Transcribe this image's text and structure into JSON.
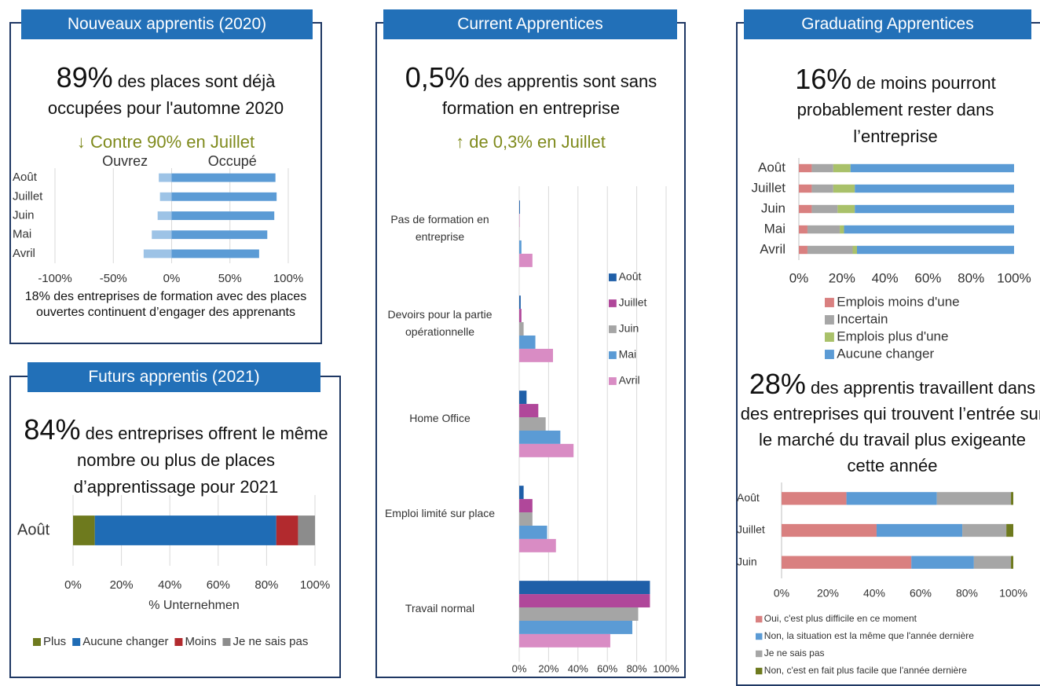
{
  "panels": [
    {
      "title": "Nouveaux apprentis (2020)",
      "highlight": "89%",
      "text": "des places sont déjà occupées pour l'automne 2020",
      "change": "↓ Contre 90% en Juillet",
      "note": "18% des entreprises de formation avec des places ouvertes continuent d’engager des apprenants"
    },
    {
      "title": "Futurs apprentis (2021)",
      "highlight": "84%",
      "text": "des entreprises offrent le même nombre ou plus de places d’apprentissage pour 2021"
    },
    {
      "title": "Current Apprentices",
      "highlight": "0,5%",
      "text": "des apprentis sont sans formation en entreprise",
      "change": "↑ de 0,3% en Juillet"
    },
    {
      "title": "Graduating Apprentices",
      "highlight": "16%",
      "text": "de moins pourront probablement rester dans l’entreprise",
      "highlight2": "28%",
      "text2": "des apprentis travaillent dans des entreprises qui trouvent l’entrée sur le marché du travail plus exigeante cette année"
    }
  ],
  "chart_data": [
    {
      "type": "bar",
      "orientation": "horizontal",
      "stacked": true,
      "grid": true,
      "legend": "top",
      "categories": [
        "Août",
        "Juillet",
        "Juin",
        "Mai",
        "Avril"
      ],
      "series": [
        {
          "name": "Ouvrez",
          "color": "#9dc3e6",
          "values": [
            -11,
            -10,
            -12,
            -17,
            -24
          ]
        },
        {
          "name": "Occupé",
          "color": "#5b9bd5",
          "values": [
            89,
            90,
            88,
            82,
            75
          ]
        }
      ],
      "xlim": [
        -100,
        100
      ],
      "xticks": [
        {
          "value": -100,
          "label": "-100%"
        },
        {
          "value": -50,
          "label": "-50%"
        },
        {
          "value": 0,
          "label": "0%"
        },
        {
          "value": 50,
          "label": "50%"
        },
        {
          "value": 100,
          "label": "100%"
        }
      ]
    },
    {
      "type": "bar",
      "orientation": "horizontal",
      "stacked": true,
      "grid": true,
      "legend": "bottom",
      "categories": [
        "Août"
      ],
      "x_label": "% Unternehmen",
      "series": [
        {
          "name": "Plus",
          "color": "#6e7a1e",
          "values": [
            9
          ]
        },
        {
          "name": "Aucune changer",
          "color": "#1f6cb5",
          "values": [
            75
          ]
        },
        {
          "name": "Moins",
          "color": "#b22a2e",
          "values": [
            9
          ]
        },
        {
          "name": "Je ne sais pas",
          "color": "#8c8c8c",
          "values": [
            7
          ]
        }
      ],
      "xlim": [
        0,
        100
      ],
      "xticks": [
        {
          "value": 0,
          "label": "0%"
        },
        {
          "value": 20,
          "label": "20%"
        },
        {
          "value": 40,
          "label": "40%"
        },
        {
          "value": 60,
          "label": "60%"
        },
        {
          "value": 80,
          "label": "80%"
        },
        {
          "value": 100,
          "label": "100%"
        }
      ]
    },
    {
      "type": "bar",
      "orientation": "horizontal",
      "stacked": false,
      "grid": true,
      "legend": "right",
      "categories": [
        "Pas de formation en entreprise",
        "Devoirs pour la partie opérationnelle",
        "Home Office",
        "Emploi limité sur place",
        "Travail normal"
      ],
      "series": [
        {
          "name": "Août",
          "color": "#1f5fa8",
          "values": [
            0.5,
            1,
            5,
            3,
            89
          ]
        },
        {
          "name": "Juillet",
          "color": "#b0479a",
          "values": [
            0.2,
            1.5,
            13,
            9,
            89
          ]
        },
        {
          "name": "Juin",
          "color": "#a5a5a5",
          "values": [
            0.2,
            3,
            18,
            9,
            81
          ]
        },
        {
          "name": "Mai",
          "color": "#5b9bd5",
          "values": [
            1.5,
            11,
            28,
            19,
            77
          ]
        },
        {
          "name": "Avril",
          "color": "#d98cc4",
          "values": [
            9,
            23,
            37,
            25,
            62
          ]
        }
      ],
      "xlim": [
        0,
        100
      ],
      "xticks": [
        {
          "value": 0,
          "label": "0%"
        },
        {
          "value": 20,
          "label": "20%"
        },
        {
          "value": 40,
          "label": "40%"
        },
        {
          "value": 60,
          "label": "60%"
        },
        {
          "value": 80,
          "label": "80%"
        },
        {
          "value": 100,
          "label": "100%"
        }
      ]
    },
    {
      "type": "bar",
      "orientation": "horizontal",
      "stacked": true,
      "grid": false,
      "legend": "bottom",
      "categories": [
        "Août",
        "Juillet",
        "Juin",
        "Mai",
        "Avril"
      ],
      "series": [
        {
          "name": "Emplois moins d'une",
          "color": "#d98080",
          "values": [
            6,
            6,
            6,
            4,
            4
          ]
        },
        {
          "name": "Incertain",
          "color": "#a6a6a6",
          "values": [
            10,
            10,
            12,
            15,
            21
          ]
        },
        {
          "name": "Emplois plus d'une",
          "color": "#a9c16a",
          "values": [
            8,
            10,
            8,
            2,
            2
          ]
        },
        {
          "name": "Aucune changer",
          "color": "#5b9bd5",
          "values": [
            76,
            74,
            74,
            79,
            73
          ]
        }
      ],
      "xlim": [
        0,
        100
      ],
      "xticks": [
        {
          "value": 0,
          "label": "0%"
        },
        {
          "value": 20,
          "label": "20%"
        },
        {
          "value": 40,
          "label": "40%"
        },
        {
          "value": 60,
          "label": "60%"
        },
        {
          "value": 80,
          "label": "80%"
        },
        {
          "value": 100,
          "label": "100%"
        }
      ]
    },
    {
      "type": "bar",
      "orientation": "horizontal",
      "stacked": true,
      "grid": false,
      "legend": "bottom",
      "categories": [
        "Août",
        "Juillet",
        "Juin"
      ],
      "series": [
        {
          "name": "Oui, c'est plus difficile en ce moment",
          "color": "#d98080",
          "values": [
            28,
            41,
            56
          ]
        },
        {
          "name": "Non, la situation est la même que l'année dernière",
          "color": "#5b9bd5",
          "values": [
            39,
            37,
            27
          ]
        },
        {
          "name": "Je ne sais pas",
          "color": "#a6a6a6",
          "values": [
            32,
            19,
            16
          ]
        },
        {
          "name": "Non, c'est en fait plus facile que l'année dernière",
          "color": "#6e7a1e",
          "values": [
            1,
            3,
            1
          ]
        }
      ],
      "xlim": [
        0,
        100
      ],
      "xticks": [
        {
          "value": 0,
          "label": "0%"
        },
        {
          "value": 20,
          "label": "20%"
        },
        {
          "value": 40,
          "label": "40%"
        },
        {
          "value": 60,
          "label": "60%"
        },
        {
          "value": 80,
          "label": "80%"
        },
        {
          "value": 100,
          "label": "100%"
        }
      ]
    }
  ]
}
